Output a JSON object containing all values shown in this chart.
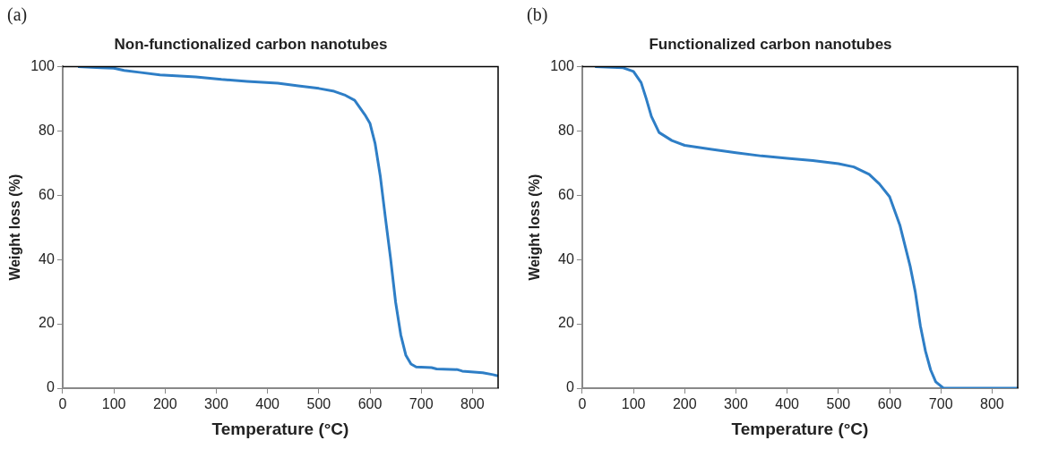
{
  "chart_data": [
    {
      "type": "line",
      "title": "Non-functionalized carbon nanotubes",
      "xlabel": "Temperature (°C)",
      "ylabel": "Weight loss (%)",
      "annotations": [
        "(a)"
      ],
      "xlim": [
        0,
        850
      ],
      "xticks": [
        0,
        100,
        200,
        300,
        400,
        500,
        600,
        700,
        800
      ],
      "ylim": [
        0,
        100
      ],
      "yticks": [
        0,
        20,
        40,
        60,
        80,
        100
      ],
      "grid": false,
      "legend": false,
      "marker": "none",
      "series": [
        {
          "color": "#2e7ec6",
          "x": [
            30,
            75,
            100,
            120,
            150,
            190,
            260,
            310,
            360,
            420,
            460,
            500,
            530,
            550,
            570,
            590,
            600,
            610,
            620,
            630,
            640,
            650,
            660,
            670,
            680,
            690,
            720,
            730,
            770,
            780,
            820,
            840,
            850
          ],
          "values": [
            100,
            99.6,
            99.5,
            98.8,
            98.2,
            97.4,
            96.8,
            96,
            95.4,
            94.8,
            94,
            93.2,
            92.3,
            91.2,
            89.5,
            85,
            82.3,
            76,
            66,
            53,
            40.5,
            26.7,
            16.6,
            10.2,
            7.5,
            6.6,
            6.4,
            6,
            5.8,
            5.3,
            4.8,
            4.2,
            3.8
          ]
        }
      ]
    },
    {
      "type": "line",
      "title": "Functionalized carbon nanotubes",
      "xlabel": "Temperature (°C)",
      "ylabel": "Weight loss (%)",
      "annotations": [
        "(b)"
      ],
      "xlim": [
        0,
        850
      ],
      "xticks": [
        0,
        100,
        200,
        300,
        400,
        500,
        600,
        700,
        800
      ],
      "ylim": [
        0,
        100
      ],
      "yticks": [
        0,
        20,
        40,
        60,
        80,
        100
      ],
      "grid": false,
      "legend": false,
      "marker": "none",
      "series": [
        {
          "color": "#2e7ec6",
          "x": [
            25,
            80,
            100,
            115,
            125,
            135,
            150,
            175,
            200,
            250,
            300,
            350,
            400,
            450,
            500,
            530,
            560,
            580,
            600,
            620,
            640,
            650,
            660,
            670,
            680,
            690,
            705,
            850
          ],
          "values": [
            100,
            99.6,
            98.5,
            95,
            90,
            84.5,
            79.5,
            77,
            75.5,
            74.3,
            73.2,
            72.2,
            71.5,
            70.8,
            69.8,
            68.8,
            66.5,
            63.5,
            59.5,
            50.7,
            38,
            30,
            19.4,
            11.5,
            5.7,
            2,
            0,
            0
          ]
        }
      ]
    }
  ]
}
